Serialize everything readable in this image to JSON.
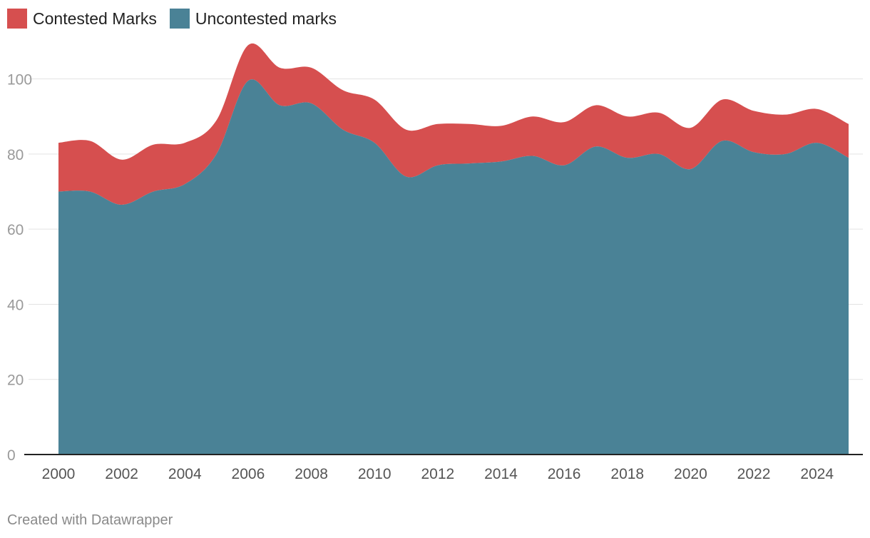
{
  "chart_data": {
    "type": "area",
    "stacked": true,
    "x": [
      2000,
      2001,
      2002,
      2003,
      2004,
      2005,
      2006,
      2007,
      2008,
      2009,
      2010,
      2011,
      2012,
      2013,
      2014,
      2015,
      2016,
      2017,
      2018,
      2019,
      2020,
      2021,
      2022,
      2023,
      2024,
      2025
    ],
    "series": [
      {
        "name": "Uncontested marks",
        "color": "#4a8296",
        "values": [
          70,
          70,
          66.5,
          70,
          72,
          80,
          99.5,
          93,
          93.5,
          86.5,
          83,
          74,
          77,
          77.5,
          78,
          79.5,
          77,
          82,
          79,
          80,
          76,
          83.5,
          80.5,
          80,
          83,
          79
        ]
      },
      {
        "name": "Contested Marks",
        "color": "#d64f4f",
        "values": [
          13,
          13.5,
          12,
          12.5,
          11,
          9,
          9.5,
          10,
          9.5,
          10.5,
          11.5,
          12.5,
          11,
          10.5,
          9.5,
          10.5,
          11.5,
          11,
          11,
          11,
          11,
          11,
          11,
          10.5,
          9,
          9
        ]
      }
    ],
    "ylim": [
      0,
      110
    ],
    "yticks": [
      0,
      20,
      40,
      60,
      80,
      100
    ],
    "xticks": [
      2000,
      2002,
      2004,
      2006,
      2008,
      2010,
      2012,
      2014,
      2016,
      2018,
      2020,
      2022,
      2024
    ],
    "grid": true,
    "legend": "top-left",
    "legend_order": [
      "Contested Marks",
      "Uncontested marks"
    ]
  },
  "footer": {
    "credit": "Created with Datawrapper"
  }
}
